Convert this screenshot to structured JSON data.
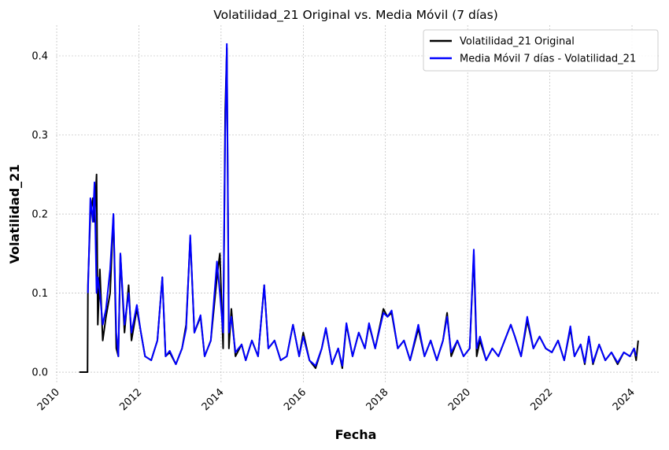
{
  "chart_data": {
    "type": "line",
    "title": "Volatilidad_21 Original vs. Media Móvil (7 días)",
    "xlabel": "Fecha",
    "ylabel": "Volatilidad_21",
    "x": [
      2010.55,
      2010.75,
      2010.76,
      2010.82,
      2010.88,
      2010.92,
      2010.97,
      2011.0,
      2011.05,
      2011.12,
      2011.2,
      2011.3,
      2011.38,
      2011.45,
      2011.5,
      2011.55,
      2011.65,
      2011.75,
      2011.82,
      2011.95,
      2012.05,
      2012.15,
      2012.3,
      2012.45,
      2012.57,
      2012.65,
      2012.75,
      2012.9,
      2013.05,
      2013.15,
      2013.25,
      2013.35,
      2013.5,
      2013.6,
      2013.75,
      2013.9,
      2013.97,
      2014.05,
      2014.1,
      2014.14,
      2014.19,
      2014.25,
      2014.35,
      2014.5,
      2014.6,
      2014.75,
      2014.9,
      2015.05,
      2015.15,
      2015.3,
      2015.45,
      2015.6,
      2015.75,
      2015.9,
      2016.0,
      2016.15,
      2016.3,
      2016.45,
      2016.55,
      2016.7,
      2016.85,
      2016.95,
      2017.05,
      2017.2,
      2017.35,
      2017.5,
      2017.6,
      2017.75,
      2017.95,
      2018.05,
      2018.15,
      2018.3,
      2018.45,
      2018.6,
      2018.8,
      2018.95,
      2019.1,
      2019.25,
      2019.4,
      2019.5,
      2019.6,
      2019.75,
      2019.9,
      2020.05,
      2020.15,
      2020.22,
      2020.3,
      2020.45,
      2020.6,
      2020.75,
      2020.9,
      2021.05,
      2021.15,
      2021.3,
      2021.45,
      2021.6,
      2021.75,
      2021.9,
      2022.05,
      2022.2,
      2022.35,
      2022.5,
      2022.6,
      2022.75,
      2022.85,
      2022.95,
      2023.05,
      2023.2,
      2023.35,
      2023.5,
      2023.65,
      2023.8,
      2023.95,
      2024.05,
      2024.1,
      2024.15
    ],
    "series": [
      {
        "name": "Volatilidad_21 Original",
        "color": "#000000",
        "values": [
          0,
          0,
          0.11,
          0.2,
          0.22,
          0.19,
          0.25,
          0.06,
          0.13,
          0.04,
          0.07,
          0.1,
          0.2,
          0.03,
          0.02,
          0.15,
          0.05,
          0.11,
          0.04,
          0.08,
          0.05,
          0.02,
          0.015,
          0.04,
          0.12,
          0.02,
          0.025,
          0.01,
          0.03,
          0.06,
          0.17,
          0.05,
          0.07,
          0.02,
          0.04,
          0.12,
          0.15,
          0.03,
          0.33,
          0.41,
          0.03,
          0.08,
          0.02,
          0.035,
          0.015,
          0.04,
          0.02,
          0.11,
          0.03,
          0.04,
          0.015,
          0.02,
          0.06,
          0.02,
          0.05,
          0.015,
          0.005,
          0.03,
          0.055,
          0.01,
          0.03,
          0.005,
          0.06,
          0.02,
          0.05,
          0.03,
          0.06,
          0.03,
          0.08,
          0.07,
          0.075,
          0.03,
          0.04,
          0.015,
          0.055,
          0.02,
          0.04,
          0.015,
          0.04,
          0.075,
          0.02,
          0.04,
          0.02,
          0.03,
          0.15,
          0.02,
          0.04,
          0.015,
          0.03,
          0.02,
          0.04,
          0.06,
          0.045,
          0.02,
          0.065,
          0.03,
          0.045,
          0.03,
          0.025,
          0.04,
          0.015,
          0.055,
          0.02,
          0.035,
          0.01,
          0.045,
          0.01,
          0.035,
          0.015,
          0.025,
          0.01,
          0.025,
          0.02,
          0.03,
          0.015,
          0.04
        ]
      },
      {
        "name": "Media Móvil 7 días - Volatilidad_21",
        "color": "#0000ff",
        "values": [
          null,
          null,
          0.1,
          0.22,
          0.19,
          0.24,
          0.1,
          0.12,
          0.1,
          0.06,
          0.08,
          0.13,
          0.2,
          0.05,
          0.02,
          0.15,
          0.06,
          0.1,
          0.05,
          0.085,
          0.05,
          0.02,
          0.015,
          0.04,
          0.12,
          0.02,
          0.027,
          0.01,
          0.03,
          0.055,
          0.173,
          0.05,
          0.072,
          0.02,
          0.04,
          0.14,
          0.1,
          0.05,
          0.3,
          0.415,
          0.05,
          0.07,
          0.025,
          0.035,
          0.015,
          0.04,
          0.02,
          0.11,
          0.03,
          0.04,
          0.015,
          0.02,
          0.06,
          0.02,
          0.045,
          0.015,
          0.008,
          0.03,
          0.056,
          0.01,
          0.03,
          0.008,
          0.062,
          0.02,
          0.05,
          0.03,
          0.062,
          0.03,
          0.075,
          0.07,
          0.078,
          0.03,
          0.04,
          0.015,
          0.06,
          0.02,
          0.04,
          0.015,
          0.04,
          0.07,
          0.025,
          0.04,
          0.02,
          0.03,
          0.155,
          0.03,
          0.045,
          0.015,
          0.03,
          0.02,
          0.04,
          0.06,
          0.045,
          0.02,
          0.07,
          0.03,
          0.045,
          0.03,
          0.025,
          0.04,
          0.015,
          0.058,
          0.02,
          0.035,
          0.012,
          0.045,
          0.012,
          0.035,
          0.015,
          0.025,
          0.012,
          0.025,
          0.02,
          0.03,
          0.02,
          null
        ]
      }
    ],
    "xlim": [
      2009.98,
      2024.67
    ],
    "ylim": [
      -0.0139,
      0.4388
    ],
    "xticks": [
      2010,
      2012,
      2014,
      2016,
      2018,
      2020,
      2022,
      2024
    ],
    "yticks": [
      {
        "value": 0,
        "label": "0.0"
      },
      {
        "value": 0.1,
        "label": "0.1"
      },
      {
        "value": 0.2,
        "label": "0.2"
      },
      {
        "value": 0.3,
        "label": "0.3"
      },
      {
        "value": 0.4,
        "label": "0.4"
      }
    ],
    "grid": true,
    "legend": "upper right"
  }
}
